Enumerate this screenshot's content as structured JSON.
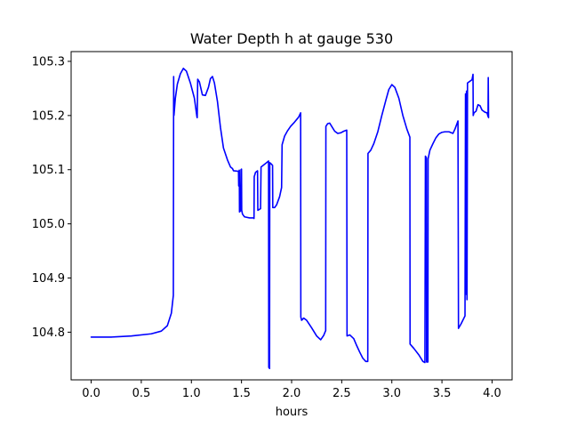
{
  "chart_data": {
    "type": "line",
    "title": "Water Depth h at gauge 530",
    "xlabel": "hours",
    "ylabel": "",
    "xlim": [
      -0.2,
      4.2
    ],
    "ylim": [
      104.712,
      105.318
    ],
    "x_ticks": [
      0.0,
      0.5,
      1.0,
      1.5,
      2.0,
      2.5,
      3.0,
      3.5,
      4.0
    ],
    "x_tick_labels": [
      "0.0",
      "0.5",
      "1.0",
      "1.5",
      "2.0",
      "2.5",
      "3.0",
      "3.5",
      "4.0"
    ],
    "y_ticks": [
      104.8,
      104.9,
      105.0,
      105.1,
      105.2,
      105.3
    ],
    "y_tick_labels": [
      "104.8",
      "104.9",
      "105.0",
      "105.1",
      "105.2",
      "105.3"
    ],
    "grid": false,
    "legend": "none",
    "series": [
      {
        "color": "#0000ff",
        "points": [
          [
            0.0,
            104.791
          ],
          [
            0.2,
            104.791
          ],
          [
            0.4,
            104.793
          ],
          [
            0.6,
            104.797
          ],
          [
            0.7,
            104.802
          ],
          [
            0.76,
            104.812
          ],
          [
            0.8,
            104.835
          ],
          [
            0.82,
            104.868
          ],
          [
            0.823,
            105.272
          ],
          [
            0.826,
            105.2
          ],
          [
            0.84,
            105.232
          ],
          [
            0.86,
            105.258
          ],
          [
            0.89,
            105.277
          ],
          [
            0.92,
            105.287
          ],
          [
            0.95,
            105.282
          ],
          [
            0.99,
            105.26
          ],
          [
            1.03,
            105.232
          ],
          [
            1.055,
            105.198
          ],
          [
            1.058,
            105.196
          ],
          [
            1.063,
            105.267
          ],
          [
            1.08,
            105.262
          ],
          [
            1.11,
            105.238
          ],
          [
            1.14,
            105.237
          ],
          [
            1.17,
            105.252
          ],
          [
            1.19,
            105.268
          ],
          [
            1.21,
            105.272
          ],
          [
            1.23,
            105.26
          ],
          [
            1.26,
            105.226
          ],
          [
            1.29,
            105.178
          ],
          [
            1.32,
            105.14
          ],
          [
            1.36,
            105.118
          ],
          [
            1.39,
            105.105
          ],
          [
            1.41,
            105.102
          ],
          [
            1.42,
            105.098
          ],
          [
            1.47,
            105.097
          ],
          [
            1.472,
            105.07
          ],
          [
            1.474,
            105.097
          ],
          [
            1.478,
            105.099
          ],
          [
            1.48,
            105.022
          ],
          [
            1.49,
            105.024
          ],
          [
            1.495,
            105.1
          ],
          [
            1.5,
            105.101
          ],
          [
            1.502,
            105.025
          ],
          [
            1.51,
            105.018
          ],
          [
            1.53,
            105.013
          ],
          [
            1.58,
            105.011
          ],
          [
            1.62,
            105.011
          ],
          [
            1.625,
            105.01
          ],
          [
            1.627,
            105.087
          ],
          [
            1.64,
            105.095
          ],
          [
            1.66,
            105.098
          ],
          [
            1.663,
            105.025
          ],
          [
            1.69,
            105.028
          ],
          [
            1.695,
            105.105
          ],
          [
            1.75,
            105.113
          ],
          [
            1.77,
            105.116
          ],
          [
            1.772,
            104.735
          ],
          [
            1.78,
            104.733
          ],
          [
            1.782,
            105.113
          ],
          [
            1.8,
            105.11
          ],
          [
            1.81,
            105.108
          ],
          [
            1.812,
            105.03
          ],
          [
            1.83,
            105.03
          ],
          [
            1.85,
            105.035
          ],
          [
            1.88,
            105.05
          ],
          [
            1.9,
            105.067
          ],
          [
            1.905,
            105.146
          ],
          [
            1.93,
            105.162
          ],
          [
            1.96,
            105.172
          ],
          [
            1.99,
            105.18
          ],
          [
            2.03,
            105.188
          ],
          [
            2.07,
            105.197
          ],
          [
            2.09,
            105.205
          ],
          [
            2.092,
            104.828
          ],
          [
            2.1,
            104.822
          ],
          [
            2.12,
            104.826
          ],
          [
            2.15,
            104.822
          ],
          [
            2.2,
            104.808
          ],
          [
            2.25,
            104.793
          ],
          [
            2.29,
            104.786
          ],
          [
            2.32,
            104.794
          ],
          [
            2.34,
            104.803
          ],
          [
            2.342,
            105.18
          ],
          [
            2.36,
            105.185
          ],
          [
            2.38,
            105.186
          ],
          [
            2.4,
            105.18
          ],
          [
            2.43,
            105.171
          ],
          [
            2.46,
            105.167
          ],
          [
            2.49,
            105.168
          ],
          [
            2.52,
            105.171
          ],
          [
            2.55,
            105.173
          ],
          [
            2.553,
            104.793
          ],
          [
            2.58,
            104.795
          ],
          [
            2.62,
            104.788
          ],
          [
            2.65,
            104.775
          ],
          [
            2.68,
            104.763
          ],
          [
            2.71,
            104.752
          ],
          [
            2.74,
            104.746
          ],
          [
            2.76,
            104.746
          ],
          [
            2.762,
            105.13
          ],
          [
            2.79,
            105.136
          ],
          [
            2.82,
            105.148
          ],
          [
            2.86,
            105.17
          ],
          [
            2.9,
            105.2
          ],
          [
            2.94,
            105.228
          ],
          [
            2.97,
            105.248
          ],
          [
            3.0,
            105.257
          ],
          [
            3.03,
            105.252
          ],
          [
            3.07,
            105.232
          ],
          [
            3.11,
            105.2
          ],
          [
            3.15,
            105.175
          ],
          [
            3.18,
            105.16
          ],
          [
            3.182,
            104.778
          ],
          [
            3.22,
            104.77
          ],
          [
            3.27,
            104.758
          ],
          [
            3.31,
            104.746
          ],
          [
            3.33,
            104.744
          ],
          [
            3.335,
            105.125
          ],
          [
            3.345,
            105.122
          ],
          [
            3.347,
            104.745
          ],
          [
            3.36,
            104.745
          ],
          [
            3.362,
            105.12
          ],
          [
            3.38,
            105.136
          ],
          [
            3.41,
            105.148
          ],
          [
            3.44,
            105.159
          ],
          [
            3.47,
            105.166
          ],
          [
            3.5,
            105.169
          ],
          [
            3.53,
            105.17
          ],
          [
            3.57,
            105.17
          ],
          [
            3.61,
            105.167
          ],
          [
            3.63,
            105.175
          ],
          [
            3.65,
            105.185
          ],
          [
            3.66,
            105.19
          ],
          [
            3.665,
            104.807
          ],
          [
            3.69,
            104.815
          ],
          [
            3.73,
            104.83
          ],
          [
            3.735,
            105.24
          ],
          [
            3.74,
            104.87
          ],
          [
            3.745,
            105.245
          ],
          [
            3.75,
            104.86
          ],
          [
            3.755,
            105.26
          ],
          [
            3.8,
            105.266
          ],
          [
            3.81,
            105.276
          ],
          [
            3.812,
            105.2
          ],
          [
            3.82,
            105.205
          ],
          [
            3.84,
            105.208
          ],
          [
            3.86,
            105.22
          ],
          [
            3.88,
            105.218
          ],
          [
            3.9,
            105.21
          ],
          [
            3.93,
            105.206
          ],
          [
            3.95,
            105.205
          ],
          [
            3.96,
            105.198
          ],
          [
            3.962,
            105.27
          ],
          [
            3.965,
            105.196
          ]
        ]
      }
    ]
  }
}
